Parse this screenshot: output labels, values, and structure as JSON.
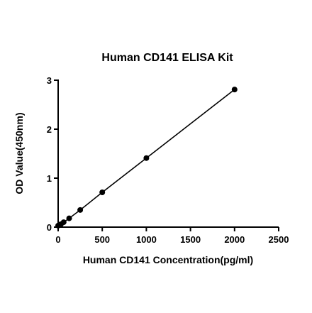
{
  "chart_data": {
    "type": "line",
    "title": "Human CD141 ELISA Kit",
    "xlabel": "Human CD141 Concentration(pg/ml)",
    "ylabel": "OD Value(450nm)",
    "xlim": [
      0,
      2500
    ],
    "ylim": [
      0,
      3
    ],
    "xticks": [
      0,
      500,
      1000,
      1500,
      2000,
      2500
    ],
    "yticks": [
      0,
      1,
      2,
      3
    ],
    "grid": false,
    "legend": "none",
    "series": [
      {
        "x": [
          0,
          31.25,
          62.5,
          125,
          250,
          500,
          1000,
          2000
        ],
        "y": [
          0.03,
          0.06,
          0.1,
          0.18,
          0.35,
          0.71,
          1.41,
          2.81
        ]
      }
    ]
  }
}
